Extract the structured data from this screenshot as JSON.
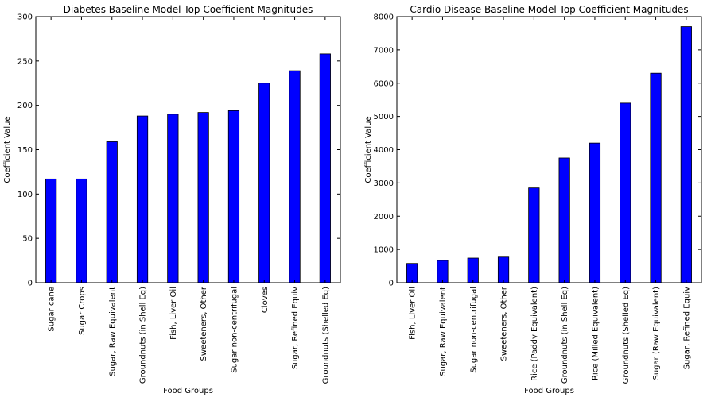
{
  "chart_data": [
    {
      "type": "bar",
      "title": "Diabetes Baseline Model Top Coefficient Magnitudes",
      "xlabel": "Food Groups",
      "ylabel": "Coefficient Value",
      "ylim": [
        0,
        300
      ],
      "yticks": [
        0,
        50,
        100,
        150,
        200,
        250,
        300
      ],
      "grid": false,
      "categories": [
        "Sugar cane",
        "Sugar Crops",
        "Sugar, Raw Equivalent",
        "Groundnuts (in Shell Eq)",
        "Fish, Liver Oil",
        "Sweeteners, Other",
        "Sugar non-centrifugal",
        "Cloves",
        "Sugar, Refined Equiv",
        "Groundnuts (Shelled Eq)"
      ],
      "values": [
        117,
        117,
        159,
        188,
        190,
        192,
        194,
        225,
        239,
        258
      ],
      "bar_color": "#0000ff"
    },
    {
      "type": "bar",
      "title": "Cardio Disease Baseline Model Top Coefficient Magnitudes",
      "xlabel": "Food Groups",
      "ylabel": "Coefficient Value",
      "ylim": [
        0,
        8000
      ],
      "yticks": [
        0,
        1000,
        2000,
        3000,
        4000,
        5000,
        6000,
        7000,
        8000
      ],
      "grid": false,
      "categories": [
        "Fish, Liver Oil",
        "Sugar, Raw Equivalent",
        "Sugar non-centrifugal",
        "Sweeteners, Other",
        "Rice (Paddy Equivalent)",
        "Groundnuts (in Shell Eq)",
        "Rice (Milled Equivalent)",
        "Groundnuts (Shelled Eq)",
        "Sugar (Raw Equivalent)",
        "Sugar, Refined Equiv"
      ],
      "values": [
        580,
        670,
        740,
        770,
        2850,
        3750,
        4200,
        5400,
        6300,
        7700
      ],
      "bar_color": "#0000ff"
    }
  ]
}
